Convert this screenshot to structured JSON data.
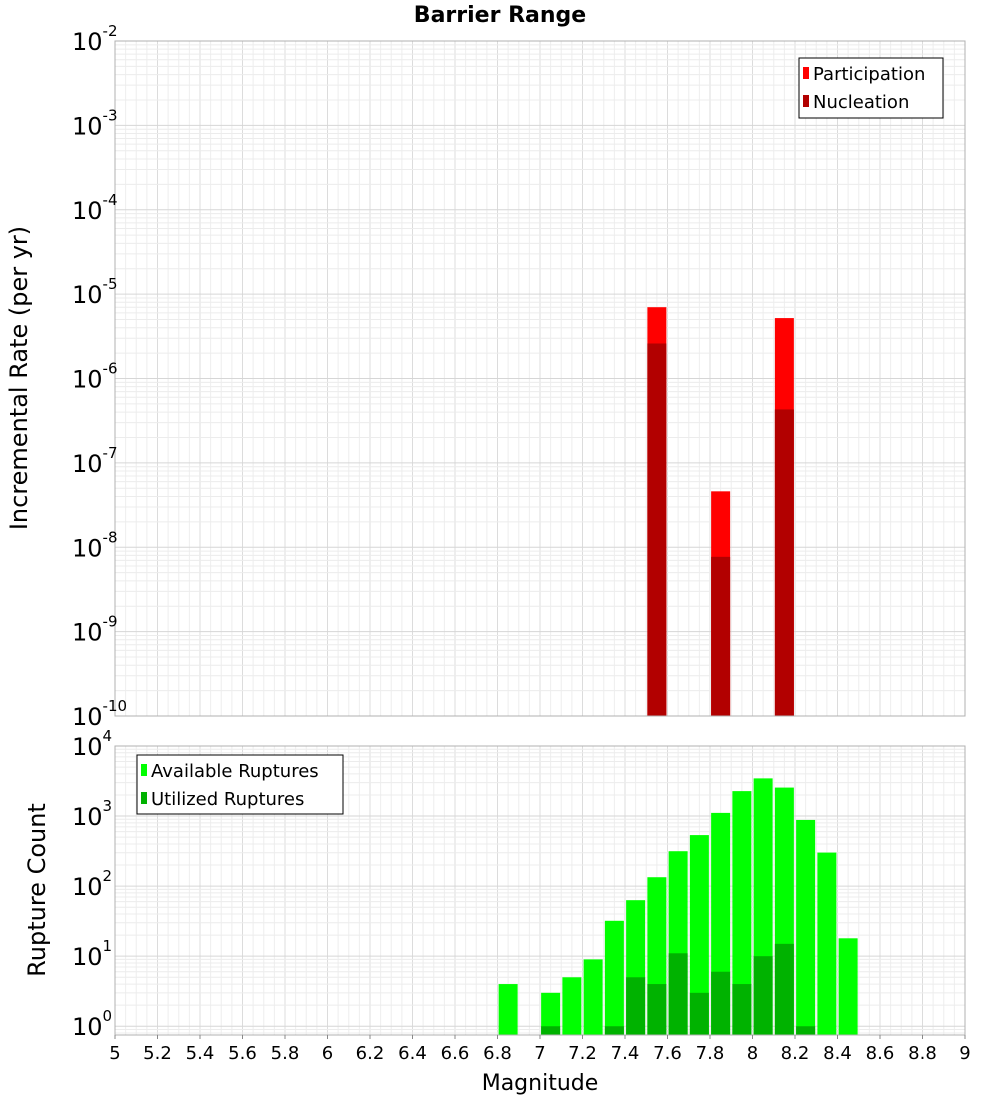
{
  "chart_data": [
    {
      "type": "bar",
      "title": "Barrier Range",
      "ylabel": "Incremental Rate (per yr)",
      "xlabel": "",
      "y_scale": "log",
      "ylim": [
        1e-10,
        0.01
      ],
      "xlim": [
        5,
        9
      ],
      "grid": true,
      "legend_position": "top-right",
      "x": [
        7.55,
        7.85,
        8.15
      ],
      "series": [
        {
          "name": "Participation",
          "color": "#ff0000",
          "values": [
            7e-06,
            4.6e-08,
            5.2e-06
          ]
        },
        {
          "name": "Nucleation",
          "color": "#b20000",
          "values": [
            2.6e-06,
            7.7e-09,
            4.3e-07
          ]
        }
      ]
    },
    {
      "type": "bar",
      "title": "",
      "ylabel": "Rupture Count",
      "xlabel": "Magnitude",
      "y_scale": "log",
      "ylim": [
        0.75,
        10000
      ],
      "xlim": [
        5,
        9
      ],
      "grid": true,
      "legend_position": "top-left",
      "x": [
        6.85,
        7.05,
        7.15,
        7.25,
        7.35,
        7.45,
        7.55,
        7.65,
        7.75,
        7.85,
        7.95,
        8.05,
        8.15,
        8.25,
        8.35,
        8.45
      ],
      "x_ticks": [
        "5",
        "5.2",
        "5.4",
        "5.6",
        "5.8",
        "6",
        "6.2",
        "6.4",
        "6.6",
        "6.8",
        "7",
        "7.2",
        "7.4",
        "7.6",
        "7.8",
        "8",
        "8.2",
        "8.4",
        "8.6",
        "8.8",
        "9"
      ],
      "series": [
        {
          "name": "Available Ruptures",
          "color": "#00ff00",
          "values": [
            4,
            3,
            5,
            9,
            32,
            63,
            134,
            315,
            535,
            1110,
            2270,
            3450,
            2550,
            880,
            301,
            18
          ]
        },
        {
          "name": "Utilized Ruptures",
          "color": "#00b200",
          "values": [
            0,
            1,
            0,
            0,
            1,
            5,
            4,
            11,
            3,
            6,
            4,
            10,
            15,
            1,
            0,
            0
          ]
        }
      ]
    }
  ]
}
